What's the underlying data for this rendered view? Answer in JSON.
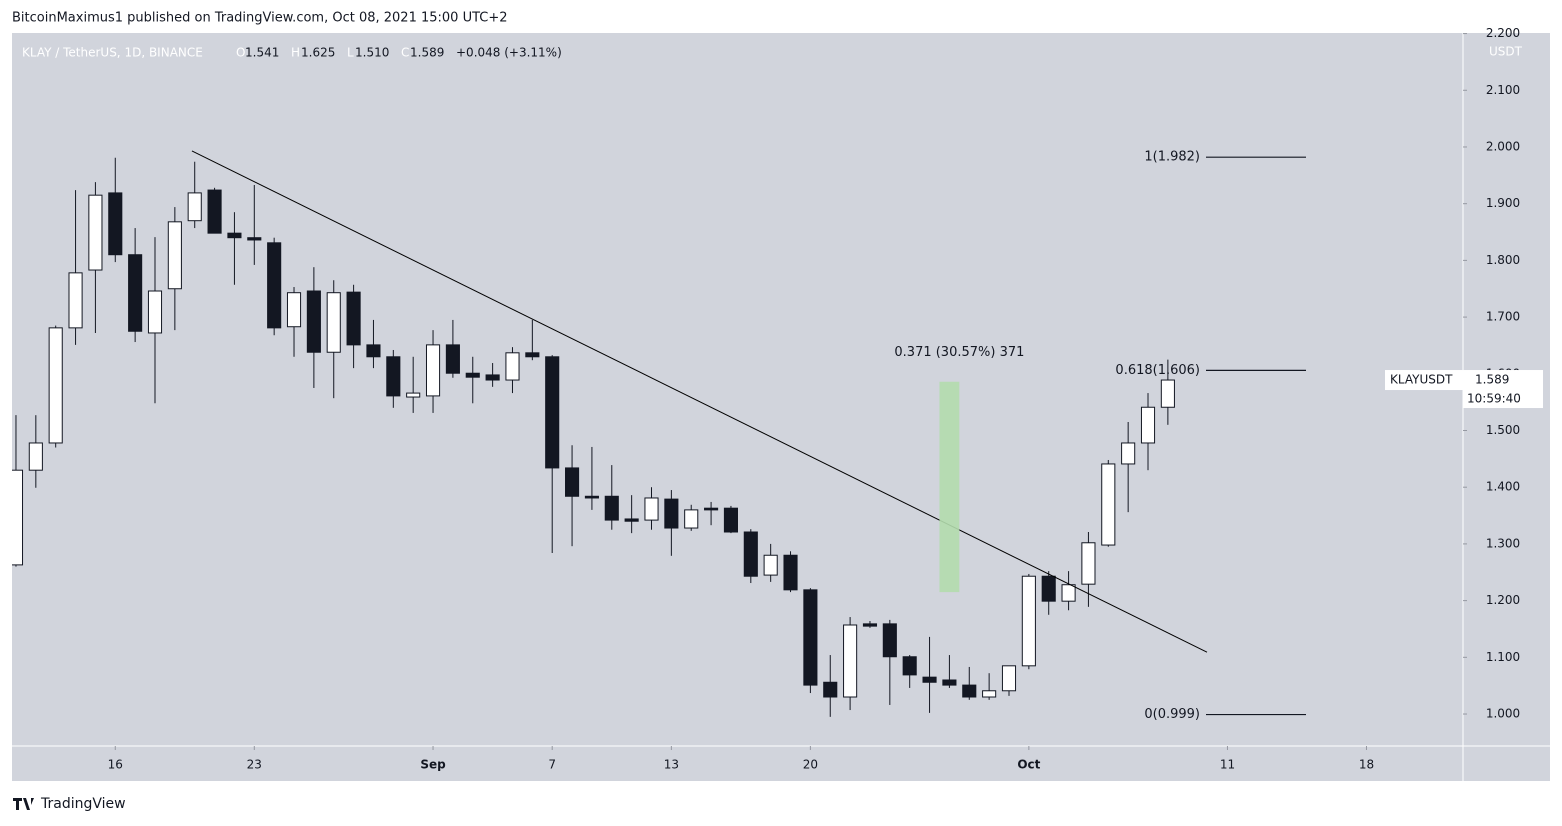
{
  "chart_data": {
    "type": "candlestick",
    "publisher_line": "BitcoinMaximus1 published on TradingView.com, Oct 08, 2021 15:00 UTC+2",
    "legend": {
      "symbol": "KLAY / TetherUS, 1D, BINANCE",
      "open_label": "O",
      "open": "1.541",
      "high_label": "H",
      "high": "1.625",
      "low_label": "L",
      "low": "1.510",
      "close_label": "C",
      "close": "1.589",
      "change": "+0.048 (+3.11%)"
    },
    "y_axis_title": "USDT",
    "brand": "TradingView",
    "open": [
      1.263,
      1.43,
      1.478,
      1.681,
      1.783,
      1.919,
      1.81,
      1.672,
      1.75,
      1.87,
      1.924,
      1.848,
      1.84,
      1.831,
      1.683,
      1.746,
      1.638,
      1.744,
      1.651,
      1.63,
      1.559,
      1.561,
      1.651,
      1.601,
      1.598,
      1.589,
      1.637,
      1.63,
      1.434,
      1.384,
      1.384,
      1.344,
      1.342,
      1.379,
      1.328,
      1.363,
      1.363,
      1.321,
      1.245,
      1.28,
      1.219,
      1.056,
      1.03,
      1.159,
      1.159,
      1.101,
      1.065,
      1.06,
      1.051,
      1.03,
      1.041,
      1.085,
      1.243,
      1.199,
      1.229,
      1.298,
      1.441,
      1.478,
      1.541
    ],
    "high": [
      1.527,
      1.527,
      1.685,
      1.924,
      1.938,
      1.981,
      1.857,
      1.841,
      1.894,
      1.974,
      1.928,
      1.885,
      1.933,
      1.84,
      1.753,
      1.788,
      1.765,
      1.757,
      1.695,
      1.642,
      1.63,
      1.677,
      1.695,
      1.63,
      1.619,
      1.647,
      1.695,
      1.633,
      1.474,
      1.471,
      1.439,
      1.386,
      1.4,
      1.395,
      1.369,
      1.374,
      1.367,
      1.326,
      1.3,
      1.287,
      1.222,
      1.104,
      1.171,
      1.164,
      1.166,
      1.104,
      1.136,
      1.104,
      1.083,
      1.072,
      1.085,
      1.247,
      1.252,
      1.252,
      1.321,
      1.448,
      1.515,
      1.566,
      1.625
    ],
    "low": [
      1.26,
      1.399,
      1.47,
      1.651,
      1.672,
      1.797,
      1.656,
      1.548,
      1.677,
      1.857,
      1.848,
      1.757,
      1.792,
      1.668,
      1.63,
      1.575,
      1.557,
      1.61,
      1.61,
      1.54,
      1.531,
      1.531,
      1.593,
      1.548,
      1.577,
      1.566,
      1.624,
      1.284,
      1.296,
      1.36,
      1.325,
      1.319,
      1.325,
      1.279,
      1.323,
      1.333,
      1.319,
      1.231,
      1.233,
      1.215,
      1.037,
      0.995,
      1.007,
      1.152,
      1.016,
      1.046,
      1.002,
      1.046,
      1.025,
      1.025,
      1.032,
      1.079,
      1.175,
      1.183,
      1.189,
      1.295,
      1.356,
      1.43,
      1.51
    ],
    "close": [
      1.43,
      1.478,
      1.681,
      1.778,
      1.915,
      1.81,
      1.675,
      1.746,
      1.868,
      1.919,
      1.848,
      1.84,
      1.836,
      1.681,
      1.743,
      1.638,
      1.743,
      1.651,
      1.63,
      1.561,
      1.566,
      1.651,
      1.601,
      1.594,
      1.589,
      1.637,
      1.63,
      1.434,
      1.384,
      1.381,
      1.342,
      1.34,
      1.381,
      1.328,
      1.36,
      1.36,
      1.321,
      1.243,
      1.28,
      1.219,
      1.051,
      1.03,
      1.157,
      1.155,
      1.101,
      1.069,
      1.056,
      1.051,
      1.03,
      1.041,
      1.085,
      1.243,
      1.199,
      1.228,
      1.302,
      1.441,
      1.478,
      1.541,
      1.589
    ],
    "xlim": [
      -0.2,
      72.86
    ],
    "xticks": [
      {
        "value": 5,
        "label": "16"
      },
      {
        "value": 12,
        "label": "23"
      },
      {
        "value": 21,
        "label": "Sep"
      },
      {
        "value": 27,
        "label": "7"
      },
      {
        "value": 33,
        "label": "13"
      },
      {
        "value": 40,
        "label": "20"
      },
      {
        "value": 51,
        "label": "Oct"
      },
      {
        "value": 61,
        "label": "11"
      },
      {
        "value": 68,
        "label": "18"
      }
    ],
    "ylim": [
      0.9436,
      2.201
    ],
    "yticks": [
      {
        "value": 1.0,
        "label": "1.000"
      },
      {
        "value": 1.1,
        "label": "1.100"
      },
      {
        "value": 1.2,
        "label": "1.200"
      },
      {
        "value": 1.3,
        "label": "1.300"
      },
      {
        "value": 1.4,
        "label": "1.400"
      },
      {
        "value": 1.5,
        "label": "1.500"
      },
      {
        "value": 1.6,
        "label": "1.600"
      },
      {
        "value": 1.7,
        "label": "1.700"
      },
      {
        "value": 1.8,
        "label": "1.800"
      },
      {
        "value": 1.9,
        "label": "1.900"
      },
      {
        "value": 2.0,
        "label": "2.000"
      },
      {
        "value": 2.1,
        "label": "2.100"
      },
      {
        "value": 2.2,
        "label": "2.200"
      }
    ],
    "grid": false,
    "trendline": {
      "x": [
        8.86,
        59.97
      ],
      "values": [
        1.993,
        1.109
      ],
      "color": "#000000"
    },
    "fib_levels": [
      {
        "label": "1(1.982)",
        "value": 1.982
      },
      {
        "label": "0.618(1.606)",
        "value": 1.606
      },
      {
        "label": "0(0.999)",
        "value": 0.999
      }
    ],
    "measure": {
      "label": "0.371 (30.57%) 371",
      "x": 47,
      "values": [
        1.215,
        1.586
      ],
      "color": "#b3dcad"
    },
    "price_tag": {
      "symbol": "KLAYUSDT",
      "price": "1.589",
      "countdown": "10:59:40"
    }
  }
}
